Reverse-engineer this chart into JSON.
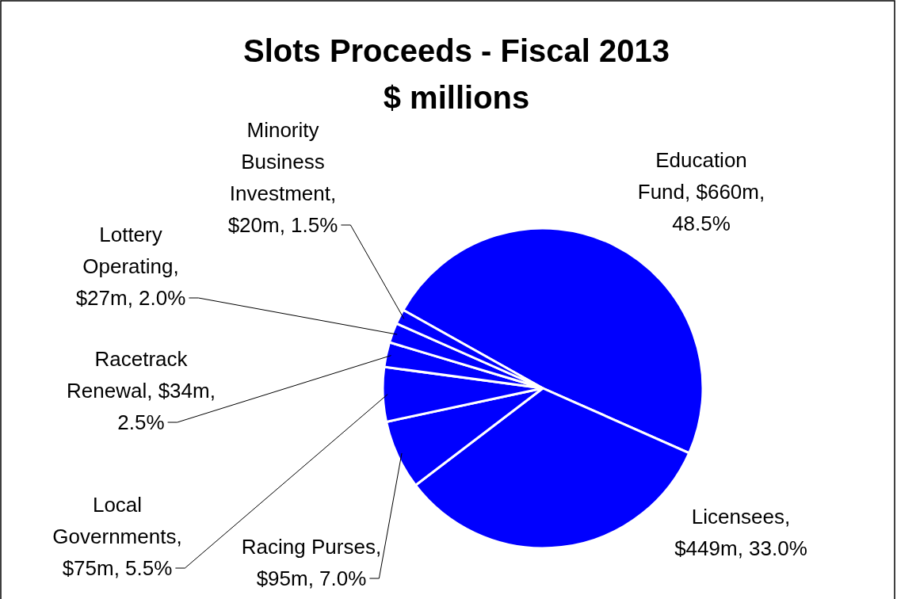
{
  "chart_data": {
    "type": "pie",
    "title": "Slots Proceeds - Fiscal 2013",
    "subtitle": "$ millions",
    "categories": [
      "Education Fund, $660m, 48.5%",
      "Licensees, $449m, 33.0%",
      "Racing Purses, $95m, 7.0%",
      "Local Governments, $75m, 5.5%",
      "Racetrack Renewal, $34m, 2.5%",
      "Lottery Operating, $27m, 2.0%",
      "Minority Business Investment, $20m, 1.5%"
    ],
    "values": [
      48.5,
      33.0,
      7.0,
      5.5,
      2.5,
      2.0,
      1.5
    ],
    "colors": [
      "#0000ff",
      "#0000ff",
      "#0000ff",
      "#0000ff",
      "#0000ff",
      "#0000ff",
      "#0000ff"
    ]
  }
}
